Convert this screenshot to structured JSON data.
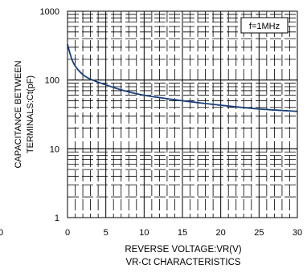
{
  "chart_data": {
    "type": "line",
    "title": "",
    "xlabel": "REVERSE VOLTAGE:VR(V)",
    "ylabel_lines": [
      "CAPACITANCE BETWEEN",
      "TERMINALS:Ct(pF)"
    ],
    "caption": "VR-Ct CHARACTERISTICS",
    "annotation": "f=1MHz",
    "xlim": [
      0,
      30
    ],
    "ylim": [
      1,
      1000
    ],
    "y_scale": "log",
    "grid": true,
    "x_ticks": [
      0,
      5,
      10,
      15,
      20,
      25,
      30
    ],
    "x_tick_labels": [
      "0",
      "5",
      "10",
      "15",
      "20",
      "25",
      "30"
    ],
    "y_ticks": [
      1,
      10,
      100,
      1000
    ],
    "y_tick_labels": [
      "1",
      "10",
      "100",
      "1000"
    ],
    "stray_label": "0",
    "series": [
      {
        "name": "",
        "color": "#1a3f7a",
        "x": [
          0,
          0.5,
          1,
          2,
          3,
          5,
          7,
          10,
          15,
          20,
          25,
          30
        ],
        "y": [
          330,
          210,
          160,
          120,
          103,
          85,
          72,
          60,
          50,
          43,
          38,
          35
        ]
      }
    ]
  }
}
